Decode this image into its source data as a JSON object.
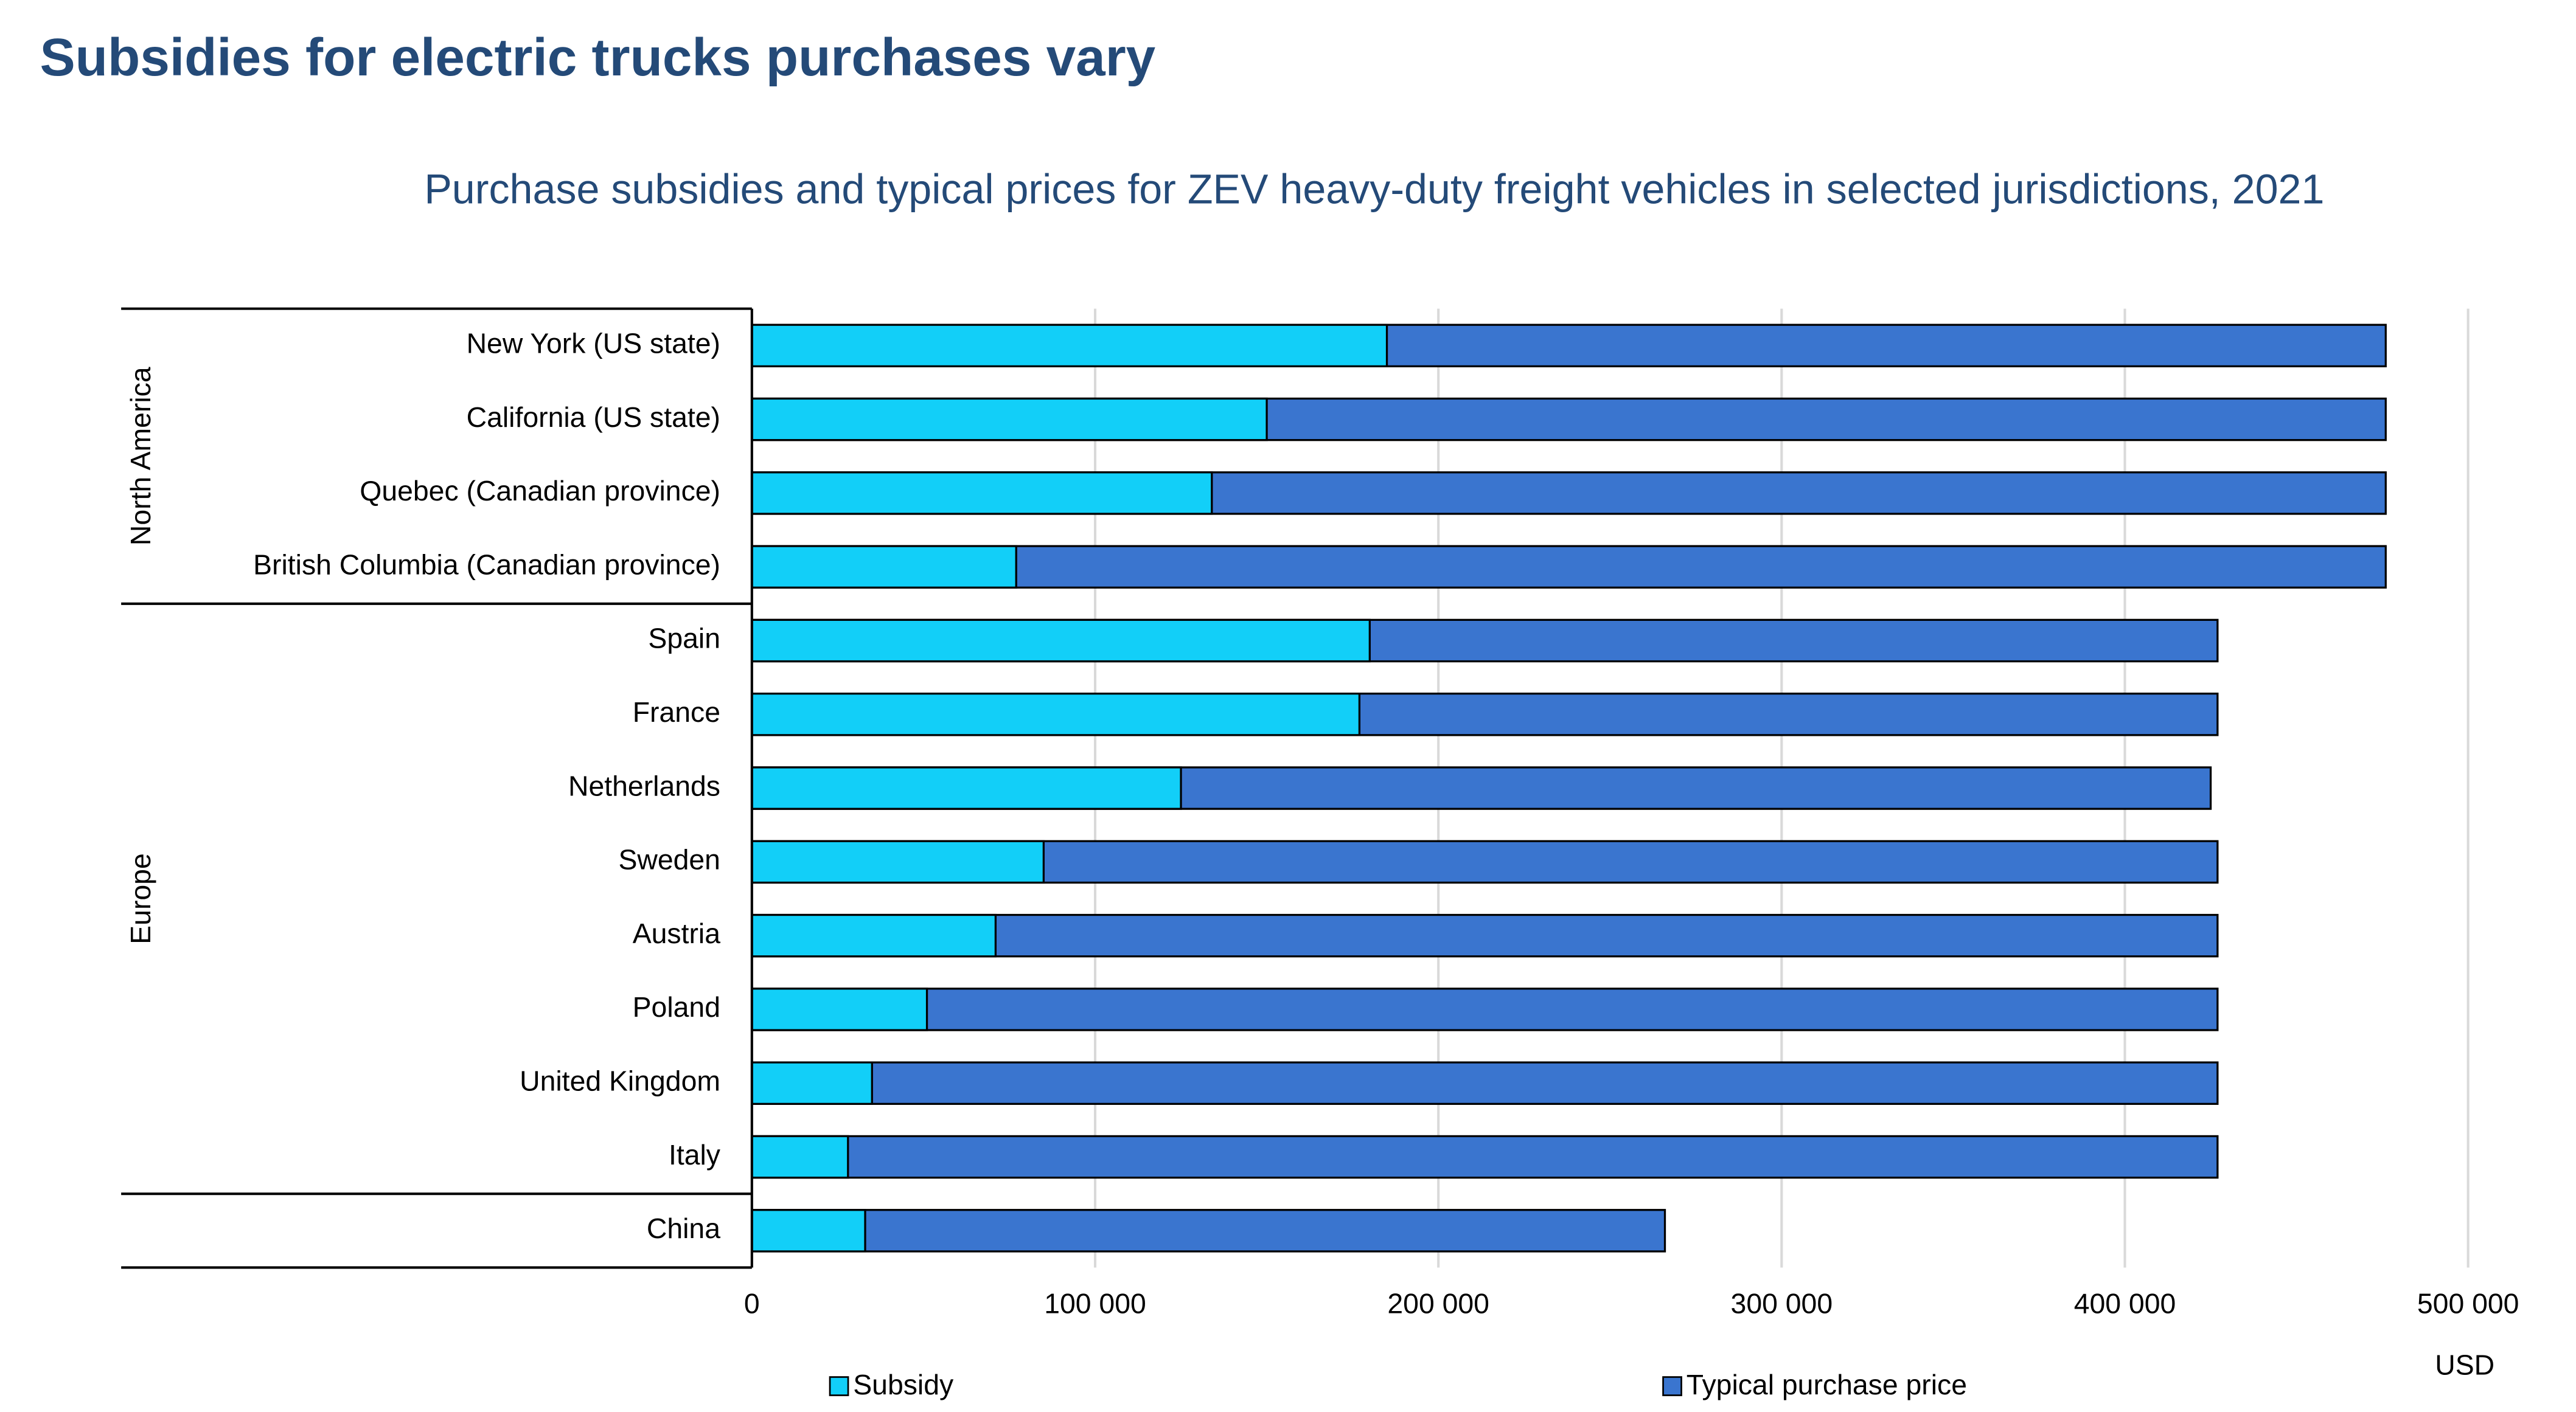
{
  "chart_data": {
    "type": "overlap_bar_horizontal",
    "title": "Subsidies for electric trucks purchases vary",
    "subtitle": "Purchase subsidies and typical prices for ZEV heavy-duty freight vehicles in selected jurisdictions, 2021",
    "xlabel": "USD",
    "categories": [
      "New York (US state)",
      "California (US state)",
      "Quebec (Canadian province)",
      "British Columbia (Canadian province)",
      "Spain",
      "France",
      "Netherlands",
      "Sweden",
      "Austria",
      "Poland",
      "United Kingdom",
      "Italy",
      "China"
    ],
    "groups": [
      "North America",
      "North America",
      "North America",
      "North America",
      "Europe",
      "Europe",
      "Europe",
      "Europe",
      "Europe",
      "Europe",
      "Europe",
      "Europe",
      null
    ],
    "series": [
      {
        "name": "Typical purchase price",
        "color": "#3a75cf",
        "values": [
          476000,
          476000,
          476000,
          476000,
          427000,
          427000,
          425000,
          427000,
          427000,
          427000,
          427000,
          427000,
          266000
        ]
      },
      {
        "name": "Subsidy",
        "color": "#12cff8",
        "values": [
          185000,
          150000,
          134000,
          77000,
          180000,
          177000,
          125000,
          85000,
          71000,
          51000,
          35000,
          28000,
          33000
        ]
      }
    ],
    "xlim": [
      0,
      500000
    ],
    "xticks": [
      0,
      {
        "value": 100000,
        "label": "100 000"
      },
      {
        "value": 200000,
        "label": "200 000"
      },
      {
        "value": 300000,
        "label": "300 000"
      },
      {
        "value": 400000,
        "label": "400 000"
      },
      {
        "value": 500000,
        "label": "500 000"
      }
    ],
    "grid": true,
    "legend": "bottom"
  }
}
